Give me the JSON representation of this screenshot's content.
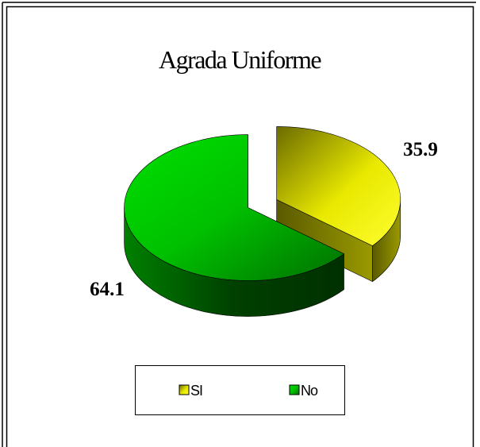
{
  "chart_data": {
    "type": "pie",
    "title": "Agrada Uniforme",
    "categories": [
      "SI",
      "No"
    ],
    "values": [
      35.9,
      64.1
    ],
    "colors": [
      "#ffff00",
      "#00ff00"
    ],
    "legend": "bottom"
  }
}
